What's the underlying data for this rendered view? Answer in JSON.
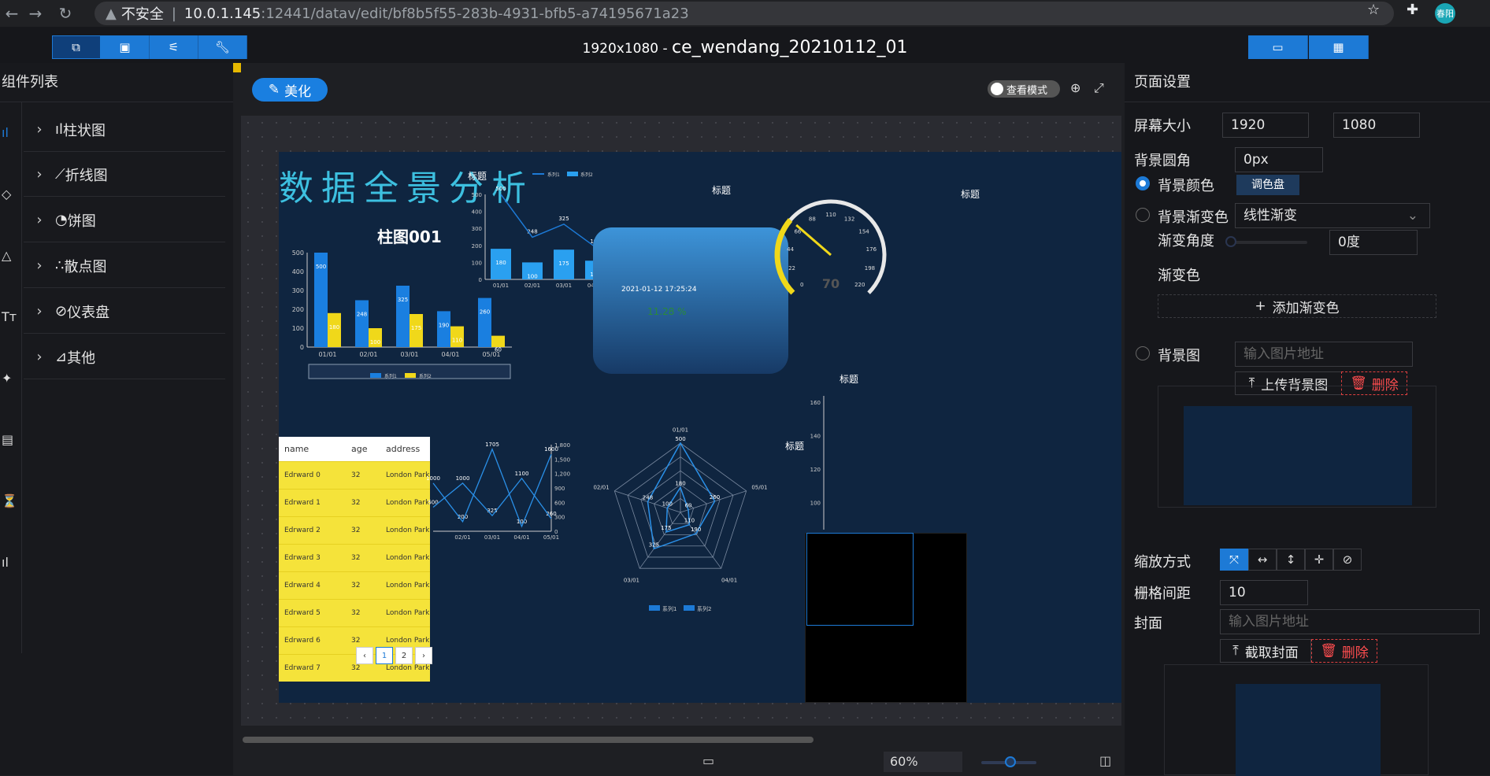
{
  "browser": {
    "security_label": "不安全",
    "host": "10.0.1.145",
    "path": ":12441/datav/edit/bf8b5f55-283b-4931-bfb5-a74195671a23",
    "user": "春阳"
  },
  "toolbar": {
    "size_label": "1920x1080 - ",
    "doc_name": "ce_wendang_20210112_01"
  },
  "left": {
    "title": "组件列表",
    "categories": [
      "柱状图",
      "折线图",
      "饼图",
      "散点图",
      "仪表盘",
      "其他"
    ],
    "rail": [
      "ıl",
      "◇",
      "△",
      "Tт",
      "✦",
      "▤",
      "⏳",
      "ıl"
    ]
  },
  "canvas": {
    "beautify": "美化",
    "view_mode": "查看模式",
    "zoom": "60%"
  },
  "screen": {
    "big_title": "数据全景分析",
    "bar_title": "柱图001",
    "t_title1": "标题",
    "t_title2": "标题",
    "t_title3": "标题",
    "t_title4": "标题",
    "t_title5": "标题",
    "datetime": "2021-01-12 17:25:24",
    "percent": "11.28 %",
    "table": {
      "headers": [
        "name",
        "age",
        "address"
      ],
      "rows": [
        [
          "Edrward 0",
          "32",
          "London Park n..."
        ],
        [
          "Edrward 1",
          "32",
          "London Park n..."
        ],
        [
          "Edrward 2",
          "32",
          "London Park n..."
        ],
        [
          "Edrward 3",
          "32",
          "London Park n..."
        ],
        [
          "Edrward 4",
          "32",
          "London Park n..."
        ],
        [
          "Edrward 5",
          "32",
          "London Park n..."
        ],
        [
          "Edrward 6",
          "32",
          "London Park n..."
        ],
        [
          "Edrward 7",
          "32",
          "London Park n..."
        ]
      ]
    },
    "pages": [
      "‹",
      "1",
      "2",
      "›"
    ]
  },
  "chart_data": [
    {
      "type": "bar",
      "title": "柱图001",
      "categories": [
        "01/01",
        "02/01",
        "03/01",
        "04/01",
        "05/01"
      ],
      "series": [
        {
          "name": "系列1",
          "values": [
            500,
            248,
            325,
            190,
            260
          ]
        },
        {
          "name": "系列2",
          "values": [
            180,
            100,
            175,
            110,
            60
          ]
        }
      ],
      "ylim": [
        0,
        500
      ],
      "yticks": [
        0,
        100,
        200,
        300,
        400,
        500
      ],
      "colors": [
        "#1a7fe0",
        "#f0d81a"
      ]
    },
    {
      "type": "bar",
      "title": "标题",
      "categories": [
        "01/01",
        "02/01",
        "03/01",
        "04/01",
        "05/01"
      ],
      "series": [
        {
          "name": "系列1",
          "type": "line",
          "values": [
            500,
            248,
            325,
            190,
            260
          ]
        },
        {
          "name": "系列2",
          "values": [
            180,
            100,
            175,
            110,
            60
          ]
        }
      ],
      "ylim": [
        0,
        500
      ],
      "yticks": [
        0,
        100,
        200,
        300,
        400,
        500
      ]
    },
    {
      "type": "gauge",
      "value": 70,
      "min": 0,
      "max": 220,
      "ticks": [
        0,
        22,
        44,
        66,
        88,
        110,
        132,
        154,
        176,
        198,
        220
      ]
    },
    {
      "type": "line",
      "categories": [
        "01/01",
        "02/01",
        "03/01",
        "04/01",
        "05/01"
      ],
      "series": [
        {
          "name": "系列1",
          "values": [
            1000,
            200,
            1705,
            100,
            1600
          ]
        },
        {
          "name": "系列2",
          "values": [
            500,
            1000,
            325,
            1100,
            260
          ]
        }
      ],
      "ylim": [
        0,
        1800
      ],
      "yticks": [
        "0",
        "300",
        "600",
        "900",
        "1,200",
        "1,500",
        "1,800"
      ]
    },
    {
      "type": "radar",
      "axes": [
        "01/01",
        "05/01",
        "04/01",
        "03/01",
        "02/01"
      ],
      "series": [
        {
          "name": "系列1",
          "values": [
            500,
            260,
            190,
            325,
            248
          ]
        },
        {
          "name": "系列2",
          "values": [
            180,
            60,
            110,
            175,
            100
          ]
        }
      ],
      "max": 500
    },
    {
      "type": "line",
      "title": "标题",
      "yticks": [
        100,
        120,
        140,
        160
      ]
    }
  ],
  "right": {
    "title": "页面设置",
    "screen_size_label": "屏幕大小",
    "width": "1920",
    "height": "1080",
    "radius_label": "背景圆角",
    "radius": "0px",
    "bg_color_label": "背景颜色",
    "palette": "调色盘",
    "bg_gradient_label": "背景渐变色",
    "gradient_type": "线性渐变",
    "gradient_angle_label": "渐变角度",
    "gradient_angle": "0度",
    "gradient_color_label": "渐变色",
    "add_gradient": "添加渐变色",
    "bg_image_label": "背景图",
    "image_placeholder": "输入图片地址",
    "upload_bg": "上传背景图",
    "delete": "删除",
    "scale_label": "缩放方式",
    "grid_label": "栅格间距",
    "grid": "10",
    "cover_label": "封面",
    "cover_placeholder": "输入图片地址",
    "capture_cover": "截取封面"
  }
}
